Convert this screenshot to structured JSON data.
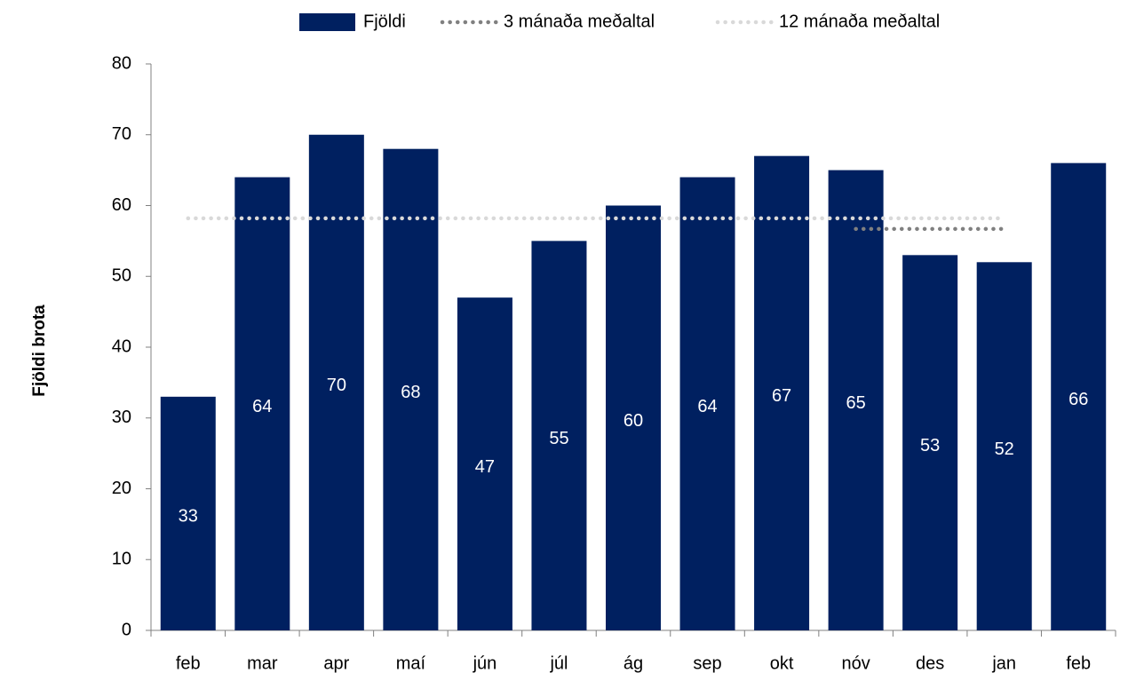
{
  "chart_data": {
    "type": "bar",
    "y_label": "Fjöldi brota",
    "categories": [
      "feb",
      "mar",
      "apr",
      "maí",
      "jún",
      "júl",
      "ág",
      "sep",
      "okt",
      "nóv",
      "des",
      "jan",
      "feb"
    ],
    "series": [
      {
        "name": "Fjöldi",
        "type": "bar",
        "color": "#002060",
        "values": [
          33,
          64,
          70,
          68,
          47,
          55,
          60,
          64,
          67,
          65,
          53,
          52,
          66
        ]
      },
      {
        "name": "3 mánaða meðaltal",
        "type": "line",
        "color": "#808080",
        "values": [
          null,
          null,
          null,
          null,
          null,
          null,
          null,
          null,
          null,
          56.7,
          56.7,
          56.7,
          null
        ]
      },
      {
        "name": "12 mánaða meðaltal",
        "type": "line",
        "color": "#d9d9d9",
        "values": [
          58.2,
          58.2,
          58.2,
          58.2,
          58.2,
          58.2,
          58.2,
          58.2,
          58.2,
          58.2,
          58.2,
          58.2,
          null
        ]
      }
    ],
    "ylim": [
      0,
      80
    ],
    "yticks": [
      0,
      10,
      20,
      30,
      40,
      50,
      60,
      70,
      80
    ]
  }
}
